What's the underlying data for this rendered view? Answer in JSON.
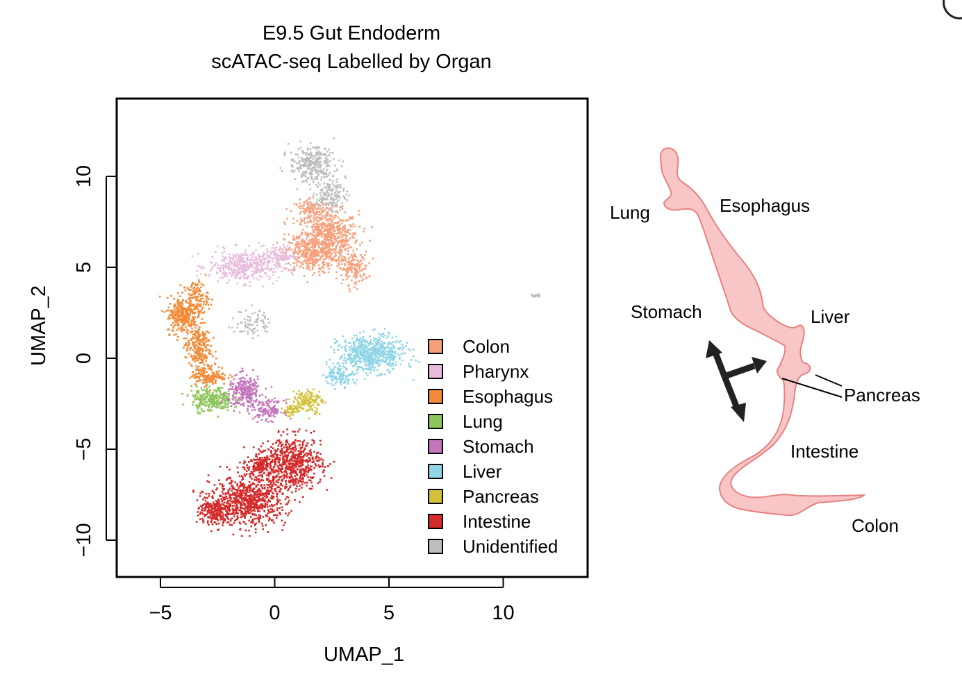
{
  "chart_data": {
    "type": "scatter",
    "title": "E9.5 Gut Endoderm",
    "subtitle": "scATAC-seq Labelled by Organ",
    "xlabel": "UMAP_1",
    "ylabel": "UMAP_2",
    "xlim": [
      -7,
      13.5
    ],
    "ylim": [
      -12,
      14
    ],
    "xticks": [
      -5,
      0,
      5,
      10
    ],
    "yticks": [
      -10,
      -5,
      0,
      5,
      10
    ],
    "xtick_labels": [
      "−5",
      "0",
      "5",
      "10"
    ],
    "ytick_labels": [
      "−10",
      "−5",
      "0",
      "5",
      "10"
    ],
    "grid": false,
    "legend_position": "bottom-right",
    "series": [
      {
        "name": "Colon",
        "color": "#f7a07c",
        "clusters": [
          {
            "cx": 2.3,
            "cy": 6.7,
            "rx": 1.2,
            "ry": 1.3,
            "n": 600
          },
          {
            "cx": 1.5,
            "cy": 5.8,
            "rx": 1.0,
            "ry": 1.0,
            "n": 300
          },
          {
            "cx": 3.4,
            "cy": 5.0,
            "rx": 0.6,
            "ry": 0.8,
            "n": 150
          },
          {
            "cx": 1.6,
            "cy": 8.2,
            "rx": 0.7,
            "ry": 0.5,
            "n": 120
          }
        ]
      },
      {
        "name": "Pharynx",
        "color": "#e8bcdc",
        "clusters": [
          {
            "cx": -1.4,
            "cy": 5.1,
            "rx": 1.4,
            "ry": 0.8,
            "n": 420
          },
          {
            "cx": 0.2,
            "cy": 5.7,
            "rx": 0.6,
            "ry": 0.5,
            "n": 90
          }
        ]
      },
      {
        "name": "Esophagus",
        "color": "#f28a38",
        "clusters": [
          {
            "cx": -4.1,
            "cy": 2.4,
            "rx": 0.6,
            "ry": 0.9,
            "n": 260
          },
          {
            "cx": -3.5,
            "cy": 3.3,
            "rx": 0.5,
            "ry": 0.9,
            "n": 150
          },
          {
            "cx": -3.4,
            "cy": 0.7,
            "rx": 0.5,
            "ry": 1.2,
            "n": 240
          },
          {
            "cx": -2.9,
            "cy": -0.9,
            "rx": 0.7,
            "ry": 0.5,
            "n": 160
          }
        ]
      },
      {
        "name": "Lung",
        "color": "#8cc65c",
        "clusters": [
          {
            "cx": -2.8,
            "cy": -2.2,
            "rx": 0.8,
            "ry": 0.6,
            "n": 280
          }
        ]
      },
      {
        "name": "Stomach",
        "color": "#c476ba",
        "clusters": [
          {
            "cx": -1.3,
            "cy": -1.8,
            "rx": 0.7,
            "ry": 0.8,
            "n": 260
          },
          {
            "cx": -0.3,
            "cy": -2.8,
            "rx": 0.6,
            "ry": 0.5,
            "n": 120
          }
        ]
      },
      {
        "name": "Liver",
        "color": "#90d5e6",
        "clusters": [
          {
            "cx": 4.2,
            "cy": 0.3,
            "rx": 1.3,
            "ry": 0.9,
            "n": 600
          },
          {
            "cx": 2.8,
            "cy": -0.9,
            "rx": 0.6,
            "ry": 0.5,
            "n": 120
          }
        ]
      },
      {
        "name": "Pancreas",
        "color": "#d2c23a",
        "clusters": [
          {
            "cx": 1.4,
            "cy": -2.3,
            "rx": 0.6,
            "ry": 0.6,
            "n": 140
          },
          {
            "cx": 0.7,
            "cy": -2.8,
            "rx": 0.4,
            "ry": 0.3,
            "n": 50
          }
        ]
      },
      {
        "name": "Intestine",
        "color": "#d42a2a",
        "clusters": [
          {
            "cx": -1.2,
            "cy": -7.8,
            "rx": 1.5,
            "ry": 1.2,
            "n": 800
          },
          {
            "cx": 0.8,
            "cy": -5.7,
            "rx": 1.1,
            "ry": 1.3,
            "n": 600
          },
          {
            "cx": -2.7,
            "cy": -8.4,
            "rx": 0.6,
            "ry": 0.7,
            "n": 200
          },
          {
            "cx": -0.6,
            "cy": -5.8,
            "rx": 0.6,
            "ry": 0.6,
            "n": 200
          }
        ]
      },
      {
        "name": "Unidentified",
        "color": "#bdbdbd",
        "clusters": [
          {
            "cx": 1.6,
            "cy": 10.7,
            "rx": 0.9,
            "ry": 0.9,
            "n": 300
          },
          {
            "cx": 2.4,
            "cy": 9.0,
            "rx": 0.6,
            "ry": 0.8,
            "n": 150
          },
          {
            "cx": -1.0,
            "cy": 2.0,
            "rx": 0.7,
            "ry": 0.7,
            "n": 80
          },
          {
            "cx": 11.4,
            "cy": 3.5,
            "rx": 0.15,
            "ry": 0.12,
            "n": 15
          }
        ]
      }
    ]
  },
  "diagram": {
    "labels": {
      "lung": "Lung",
      "esophagus": "Esophagus",
      "stomach": "Stomach",
      "liver": "Liver",
      "pancreas": "Pancreas",
      "intestine": "Intestine",
      "colon": "Colon"
    },
    "organ_fill": "#f8c6c6",
    "organ_stroke": "#e98080"
  }
}
